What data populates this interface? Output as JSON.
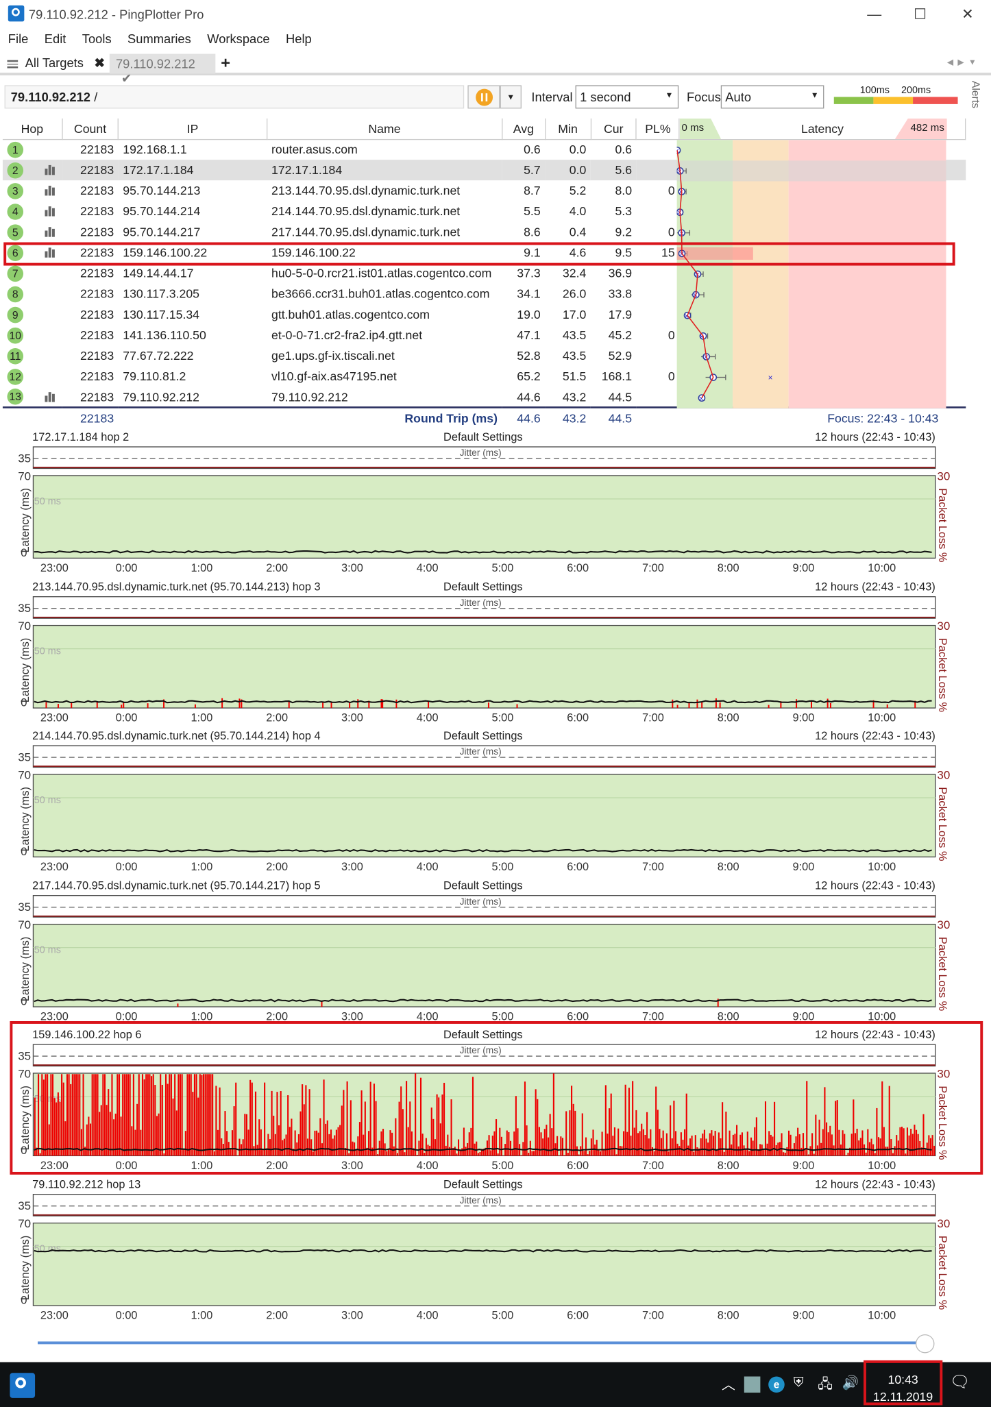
{
  "window": {
    "title": "79.110.92.212 - PingPlotter Pro",
    "controls": {
      "min": "—",
      "max": "☐",
      "close": "✕"
    }
  },
  "menu": [
    "File",
    "Edit",
    "Tools",
    "Summaries",
    "Workspace",
    "Help"
  ],
  "tabs": {
    "all_targets": "All Targets",
    "target": "79.110.92.212",
    "add": "+"
  },
  "toolbar": {
    "breadcrumb": "79.110.92.212",
    "breadcrumb_sep": "/",
    "interval_label": "Interval",
    "interval_value": "1 second",
    "focus_label": "Focus",
    "focus_value": "Auto",
    "scale_100": "100ms",
    "scale_200": "200ms",
    "alerts": "Alerts"
  },
  "columns": {
    "hop": "Hop",
    "count": "Count",
    "ip": "IP",
    "name": "Name",
    "avg": "Avg",
    "min": "Min",
    "cur": "Cur",
    "pl": "PL%",
    "latency": "Latency",
    "lat_min": "0 ms",
    "lat_max": "482 ms"
  },
  "hops": [
    {
      "hop": "1",
      "bars": false,
      "count": "22183",
      "ip": "192.168.1.1",
      "name": "router.asus.com",
      "avg": "0.6",
      "min": "0.0",
      "cur": "0.6",
      "pl": ""
    },
    {
      "hop": "2",
      "bars": true,
      "count": "22183",
      "ip": "172.17.1.184",
      "name": "172.17.1.184",
      "avg": "5.7",
      "min": "0.0",
      "cur": "5.6",
      "pl": ""
    },
    {
      "hop": "3",
      "bars": true,
      "count": "22183",
      "ip": "95.70.144.213",
      "name": "213.144.70.95.dsl.dynamic.turk.net",
      "avg": "8.7",
      "min": "5.2",
      "cur": "8.0",
      "pl": "0"
    },
    {
      "hop": "4",
      "bars": true,
      "count": "22183",
      "ip": "95.70.144.214",
      "name": "214.144.70.95.dsl.dynamic.turk.net",
      "avg": "5.5",
      "min": "4.0",
      "cur": "5.3",
      "pl": ""
    },
    {
      "hop": "5",
      "bars": true,
      "count": "22183",
      "ip": "95.70.144.217",
      "name": "217.144.70.95.dsl.dynamic.turk.net",
      "avg": "8.6",
      "min": "0.4",
      "cur": "9.2",
      "pl": "0"
    },
    {
      "hop": "6",
      "bars": true,
      "count": "22183",
      "ip": "159.146.100.22",
      "name": "159.146.100.22",
      "avg": "9.1",
      "min": "4.6",
      "cur": "9.5",
      "pl": "15"
    },
    {
      "hop": "7",
      "bars": false,
      "count": "22183",
      "ip": "149.14.44.17",
      "name": "hu0-5-0-0.rcr21.ist01.atlas.cogentco.com",
      "avg": "37.3",
      "min": "32.4",
      "cur": "36.9",
      "pl": ""
    },
    {
      "hop": "8",
      "bars": false,
      "count": "22183",
      "ip": "130.117.3.205",
      "name": "be3666.ccr31.buh01.atlas.cogentco.com",
      "avg": "34.1",
      "min": "26.0",
      "cur": "33.8",
      "pl": ""
    },
    {
      "hop": "9",
      "bars": false,
      "count": "22183",
      "ip": "130.117.15.34",
      "name": "gtt.buh01.atlas.cogentco.com",
      "avg": "19.0",
      "min": "17.0",
      "cur": "17.9",
      "pl": ""
    },
    {
      "hop": "10",
      "bars": false,
      "count": "22183",
      "ip": "141.136.110.50",
      "name": "et-0-0-71.cr2-fra2.ip4.gtt.net",
      "avg": "47.1",
      "min": "43.5",
      "cur": "45.2",
      "pl": "0"
    },
    {
      "hop": "11",
      "bars": false,
      "count": "22183",
      "ip": "77.67.72.222",
      "name": "ge1.ups.gf-ix.tiscali.net",
      "avg": "52.8",
      "min": "43.5",
      "cur": "52.9",
      "pl": ""
    },
    {
      "hop": "12",
      "bars": false,
      "count": "22183",
      "ip": "79.110.81.2",
      "name": "vl10.gf-aix.as47195.net",
      "avg": "65.2",
      "min": "51.5",
      "cur": "168.1",
      "pl": "0"
    },
    {
      "hop": "13",
      "bars": true,
      "count": "22183",
      "ip": "79.110.92.212",
      "name": "79.110.92.212",
      "avg": "44.6",
      "min": "43.2",
      "cur": "44.5",
      "pl": ""
    }
  ],
  "round_trip": {
    "count": "22183",
    "label": "Round Trip (ms)",
    "avg": "44.6",
    "min": "43.2",
    "cur": "44.5",
    "focus": "Focus: 22:43 - 10:43"
  },
  "graph_common": {
    "settings": "Default Settings",
    "range": "12 hours (22:43 - 10:43)",
    "jitter": "Jitter (ms)",
    "y35": "35",
    "y70": "70",
    "y0": "0",
    "y50": "50 ms",
    "ylabel": "Latency (ms)",
    "pl30": "30",
    "pllabel": "Packet Loss %",
    "times": [
      "23:00",
      "0:00",
      "1:00",
      "2:00",
      "3:00",
      "4:00",
      "5:00",
      "6:00",
      "7:00",
      "8:00",
      "9:00",
      "10:00"
    ]
  },
  "graphs": [
    {
      "title": "172.17.1.184 hop 2",
      "loss": "low"
    },
    {
      "title": "213.144.70.95.dsl.dynamic.turk.net (95.70.144.213) hop 3",
      "loss": "some"
    },
    {
      "title": "214.144.70.95.dsl.dynamic.turk.net (95.70.144.214) hop 4",
      "loss": "none"
    },
    {
      "title": "217.144.70.95.dsl.dynamic.turk.net (95.70.144.217) hop 5",
      "loss": "few"
    },
    {
      "title": "159.146.100.22 hop 6",
      "loss": "heavy"
    },
    {
      "title": "79.110.92.212 hop 13",
      "loss": "none"
    }
  ],
  "taskbar": {
    "time": "10:43",
    "date": "12.11.2019"
  },
  "colors": {
    "green": "#d7ecc4",
    "orange": "#fbe2c0",
    "red": "#ffd0d0",
    "loss": "#ee0000",
    "accent": "#1a73c9",
    "highlight": "#d9141b"
  }
}
